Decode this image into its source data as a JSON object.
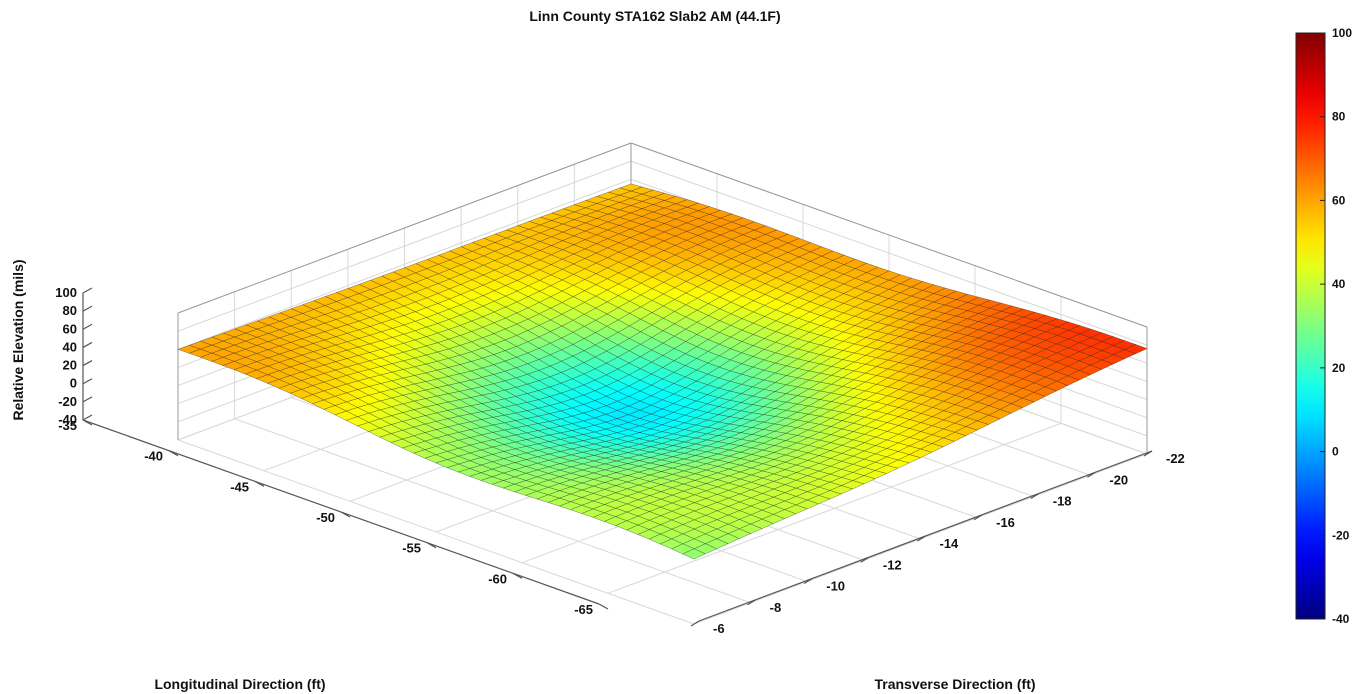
{
  "chart_data": {
    "type": "surface3d",
    "title": "Linn County STA162 Slab2 AM (44.1F)",
    "xlabel": "Longitudinal Direction (ft)",
    "ylabel": "Transverse Direction (ft)",
    "zlabel": "Relative Elevation (mils)",
    "x_ticks": [
      -35,
      -40,
      -45,
      -50,
      -55,
      -60,
      -65
    ],
    "y_ticks": [
      -6,
      -8,
      -10,
      -12,
      -14,
      -16,
      -18,
      -20,
      -22
    ],
    "z_ticks": [
      -40,
      -20,
      0,
      20,
      40,
      60,
      80,
      100
    ],
    "xlim": [
      -65,
      -35
    ],
    "ylim": [
      -22,
      -6
    ],
    "zlim": [
      -40,
      100
    ],
    "colorbar": {
      "colormap": "jet",
      "limits": [
        -40,
        100
      ],
      "ticks": [
        -40,
        -20,
        0,
        20,
        40,
        60,
        80,
        100
      ]
    },
    "corner_elevations": {
      "x-35_y-6": 60,
      "x-35_y-22": 55,
      "x-65_y-6": 30,
      "x-65_y-22": 75
    },
    "grid": true,
    "shading": "faceted"
  }
}
